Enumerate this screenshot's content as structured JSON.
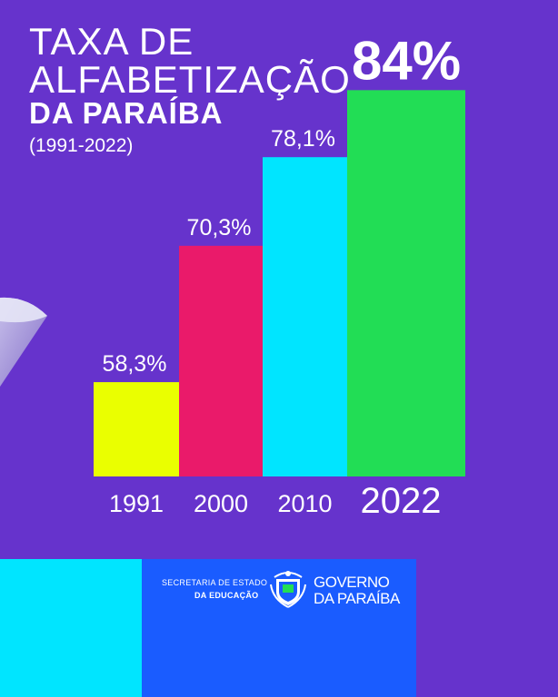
{
  "title": {
    "line1": "TAXA DE",
    "line2": "ALFABETIZAÇÃO",
    "line3": "DA PARAÍBA",
    "period": "(1991-2022)"
  },
  "chart_data": {
    "type": "bar",
    "categories": [
      "1991",
      "2000",
      "2010",
      "2022"
    ],
    "values": [
      58.3,
      70.3,
      78.1,
      84
    ],
    "value_labels": [
      "58,3%",
      "70,3%",
      "78,1%",
      "84%"
    ],
    "colors": [
      "#eaff00",
      "#ea1a6a",
      "#00e5ff",
      "#22dd55"
    ],
    "title": "TAXA DE ALFABETIZAÇÃO DA PARAÍBA",
    "subtitle": "(1991-2022)",
    "xlabel": "",
    "ylabel": "",
    "grid": false,
    "legend": "none"
  },
  "footer": {
    "secretaria_line1": "SECRETARIA DE ESTADO",
    "secretaria_line2": "DA EDUCAÇÃO",
    "governo_line1": "GOVERNO",
    "governo_line2": "DA PARAÍBA",
    "seal_icon": "state-coat-of-arms-icon"
  },
  "colors": {
    "background": "#6633cc",
    "footer_cyan": "#00e5ff",
    "footer_blue": "#1a5cff"
  }
}
